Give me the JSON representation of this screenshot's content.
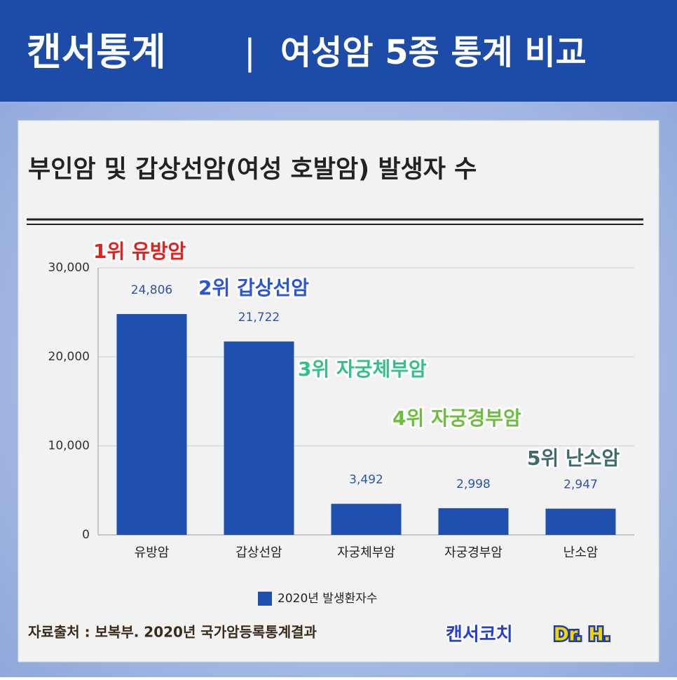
{
  "header": {
    "title": "캔서통계",
    "separator": "|",
    "subtitle": "여성암 5종 통계 비교"
  },
  "chart_data": {
    "type": "bar",
    "title": "부인암 및 갑상선암(여성 호발암) 발생자 수",
    "categories": [
      "유방암",
      "갑상선암",
      "자궁체부암",
      "자궁경부암",
      "난소암"
    ],
    "series": [
      {
        "name": "2020년 발생환자수",
        "color": "#1f50b0",
        "values": [
          24806,
          21722,
          3492,
          2998,
          2947
        ],
        "value_labels": [
          "24,806",
          "21,722",
          "3,492",
          "2,998",
          "2,947"
        ]
      }
    ],
    "ylim": [
      0,
      30000
    ],
    "yticks": [
      0,
      {
        "value": 10000,
        "label": "10,000"
      },
      {
        "value": 20000,
        "label": "20,000"
      },
      {
        "value": 30000,
        "label": "30,000"
      }
    ],
    "grid": true,
    "annotations": [
      {
        "text": "1위 유방암",
        "color": "#e3211c"
      },
      {
        "text": "2위 갑상선암",
        "color": "#2a55d8"
      },
      {
        "text": "3위 자궁체부암",
        "color": "#35c08a"
      },
      {
        "text": "4위 자궁경부암",
        "color": "#6cbf3c"
      },
      {
        "text": "5위 난소암",
        "color": "#3d6b6e"
      }
    ]
  },
  "footer": {
    "source": "자료출처 : 보복부. 2020년 국가암등록통계결과",
    "brand": "캔서코치",
    "author": "Dr. H."
  }
}
